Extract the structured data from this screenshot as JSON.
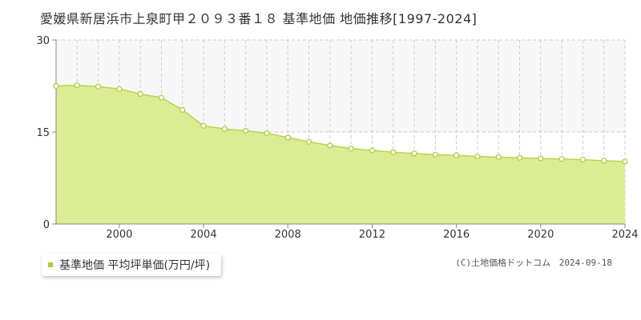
{
  "title": "愛媛県新居浜市上泉町甲２０９３番１８ 基準地価 地価推移[1997-2024]",
  "legend": {
    "label": "基準地価 平均坪単価(万円/坪)"
  },
  "credit": {
    "source": "(C)土地価格ドットコム",
    "date": "2024-09-18"
  },
  "colors": {
    "fill": "#dcec94",
    "line": "#b5d64a",
    "marker": "#a8cc33",
    "band": "#f7f7f7",
    "grid": "#cccccc"
  },
  "chart_data": {
    "type": "area",
    "x": [
      1997,
      1998,
      1999,
      2000,
      2001,
      2002,
      2003,
      2004,
      2005,
      2006,
      2007,
      2008,
      2009,
      2010,
      2011,
      2012,
      2013,
      2014,
      2015,
      2016,
      2017,
      2018,
      2019,
      2020,
      2021,
      2022,
      2023,
      2024
    ],
    "series": [
      {
        "values": [
          22.5,
          22.6,
          22.4,
          22.0,
          21.2,
          20.6,
          18.6,
          16.0,
          15.5,
          15.2,
          14.8,
          14.1,
          13.4,
          12.8,
          12.3,
          12.0,
          11.7,
          11.5,
          11.3,
          11.2,
          11.0,
          10.9,
          10.8,
          10.7,
          10.6,
          10.5,
          10.3,
          10.2
        ]
      }
    ],
    "ylim": [
      0,
      30
    ],
    "yticks": [
      "0",
      "15",
      "30"
    ],
    "xticks": [
      "2000",
      "2004",
      "2008",
      "2012",
      "2016",
      "2020",
      "2024"
    ],
    "xlim": [
      1997,
      2024
    ],
    "grid": true
  }
}
